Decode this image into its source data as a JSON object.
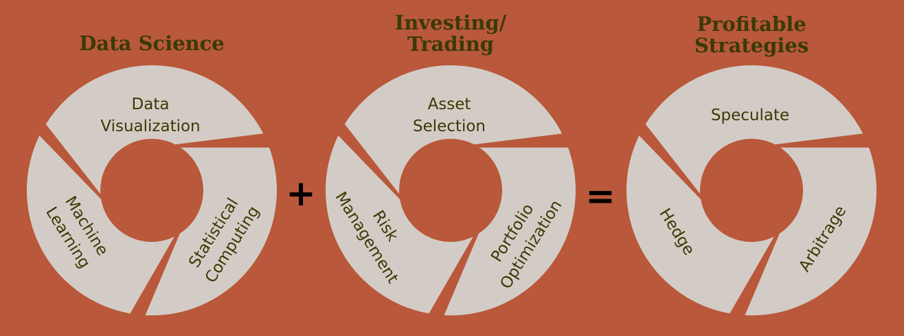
{
  "diagrams": [
    {
      "title": [
        "Data Science"
      ],
      "segments": [
        {
          "lines": [
            "Data",
            "Visualization"
          ]
        },
        {
          "lines": [
            "Statistical",
            "Computing"
          ]
        },
        {
          "lines": [
            "Machine",
            "Learning"
          ]
        }
      ]
    },
    {
      "title": [
        "Investing/",
        "Trading"
      ],
      "segments": [
        {
          "lines": [
            "Asset",
            "Selection"
          ]
        },
        {
          "lines": [
            "Portfolio",
            "Optimization"
          ]
        },
        {
          "lines": [
            "Risk",
            "Management"
          ]
        }
      ]
    },
    {
      "title": [
        "Profitable",
        "Strategies"
      ],
      "segments": [
        {
          "lines": [
            "Speculate"
          ]
        },
        {
          "lines": [
            "Arbitrage"
          ]
        },
        {
          "lines": [
            "Hedge"
          ]
        }
      ]
    }
  ],
  "operators": {
    "plus": "+",
    "equals": "="
  },
  "colors": {
    "background": "#b9583a",
    "segment_fill": "#d3ccc6",
    "title_text": "#3b3a06",
    "label_text": "#3b3a06",
    "operator_text": "#000000"
  }
}
